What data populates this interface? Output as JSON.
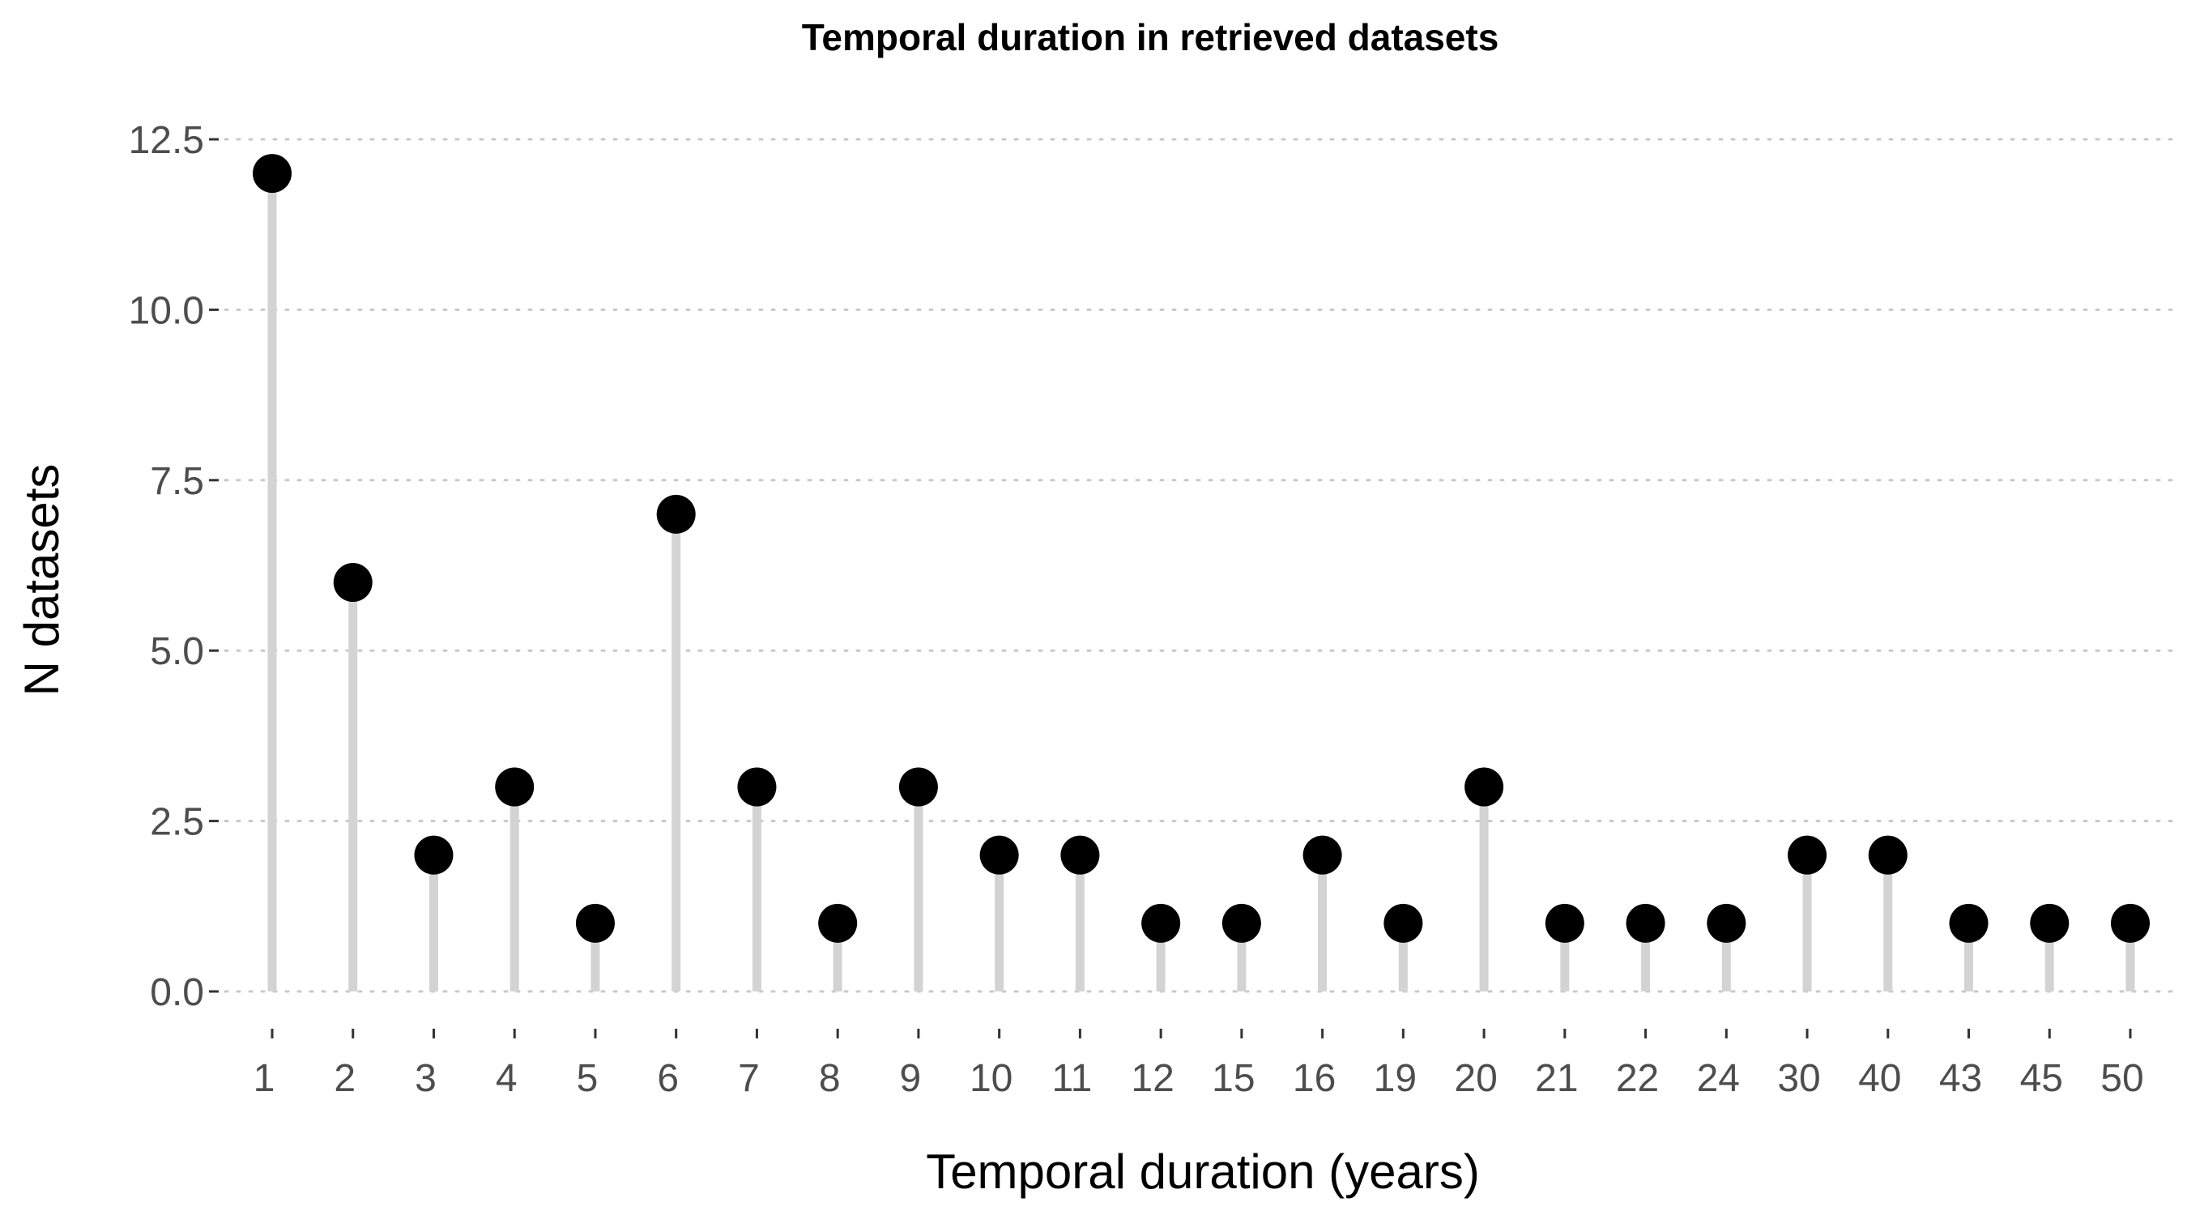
{
  "chart_data": {
    "type": "scatter",
    "style": "lollipop",
    "title": "Temporal duration in retrieved datasets",
    "xlabel": "Temporal duration (years)",
    "ylabel": "N datasets",
    "categories": [
      "1",
      "2",
      "3",
      "4",
      "5",
      "6",
      "7",
      "8",
      "9",
      "10",
      "11",
      "12",
      "15",
      "16",
      "19",
      "20",
      "21",
      "22",
      "24",
      "30",
      "40",
      "43",
      "45",
      "50"
    ],
    "values": [
      12,
      6,
      2,
      3,
      1,
      7,
      3,
      1,
      3,
      2,
      2,
      1,
      1,
      2,
      1,
      3,
      1,
      1,
      1,
      2,
      2,
      1,
      1,
      1
    ],
    "yticks": [
      "0.0",
      "2.5",
      "5.0",
      "7.5",
      "10.0",
      "12.5"
    ],
    "ylim": [
      0,
      12.5
    ],
    "grid": "horizontal dotted",
    "legend": "none",
    "colors": {
      "point": "#000000",
      "stem": "#d3d3d3",
      "grid": "#c8c8c8",
      "tick_label": "#4d4d4d"
    }
  }
}
